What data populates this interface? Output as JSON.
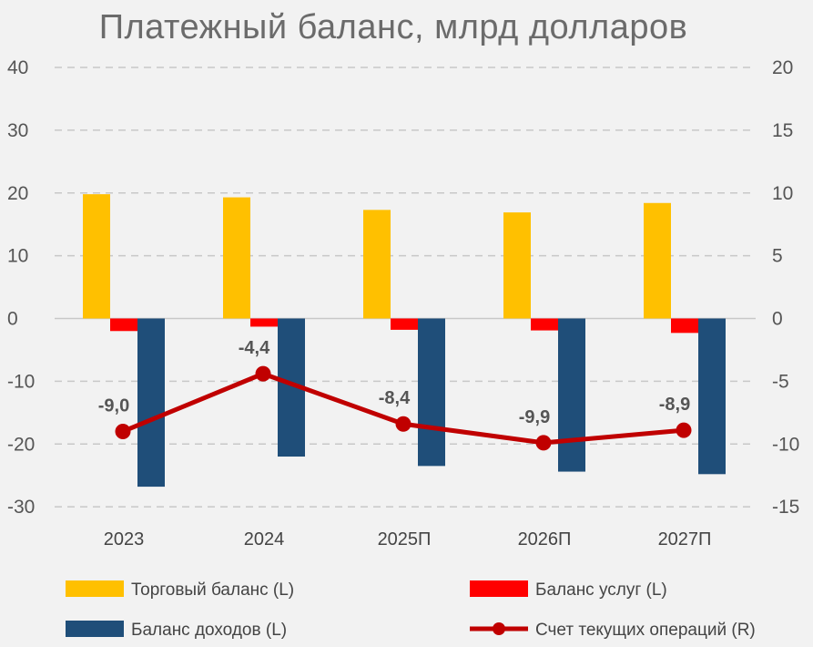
{
  "chart_data": {
    "type": "bar",
    "title": "Платежный баланс, млрд долларов",
    "categories": [
      "2023",
      "2024",
      "2025П",
      "2026П",
      "2027П"
    ],
    "y_left": {
      "ticks": [
        40,
        30,
        20,
        10,
        0,
        -10,
        -20,
        -30
      ],
      "ylim": [
        -30,
        40
      ]
    },
    "y_right": {
      "ticks": [
        20,
        15,
        10,
        5,
        0,
        -5,
        -10,
        -15
      ],
      "ylim": [
        -15,
        20
      ]
    },
    "grid": true,
    "legend_position": "bottom",
    "series": [
      {
        "name": "Торговый баланс (L)",
        "kind": "bar",
        "axis": "left",
        "color": "#ffc000",
        "values": [
          19.8,
          19.3,
          17.3,
          16.9,
          18.4
        ]
      },
      {
        "name": "Баланс услуг (L)",
        "kind": "bar",
        "axis": "left",
        "color": "#ff0000",
        "values": [
          -2.0,
          -1.3,
          -1.8,
          -1.9,
          -2.3
        ]
      },
      {
        "name": "Баланс доходов (L)",
        "kind": "bar",
        "axis": "left",
        "color": "#1f4e79",
        "values": [
          -26.8,
          -22.0,
          -23.5,
          -24.4,
          -24.8
        ]
      },
      {
        "name": "Счет текущих операций (R)",
        "kind": "line",
        "axis": "right",
        "color": "#c00000",
        "values": [
          -9.0,
          -4.4,
          -8.4,
          -9.9,
          -8.9
        ],
        "data_labels": [
          "-9,0",
          "-4,4",
          "-8,4",
          "-9,9",
          "-8,9"
        ]
      }
    ]
  }
}
